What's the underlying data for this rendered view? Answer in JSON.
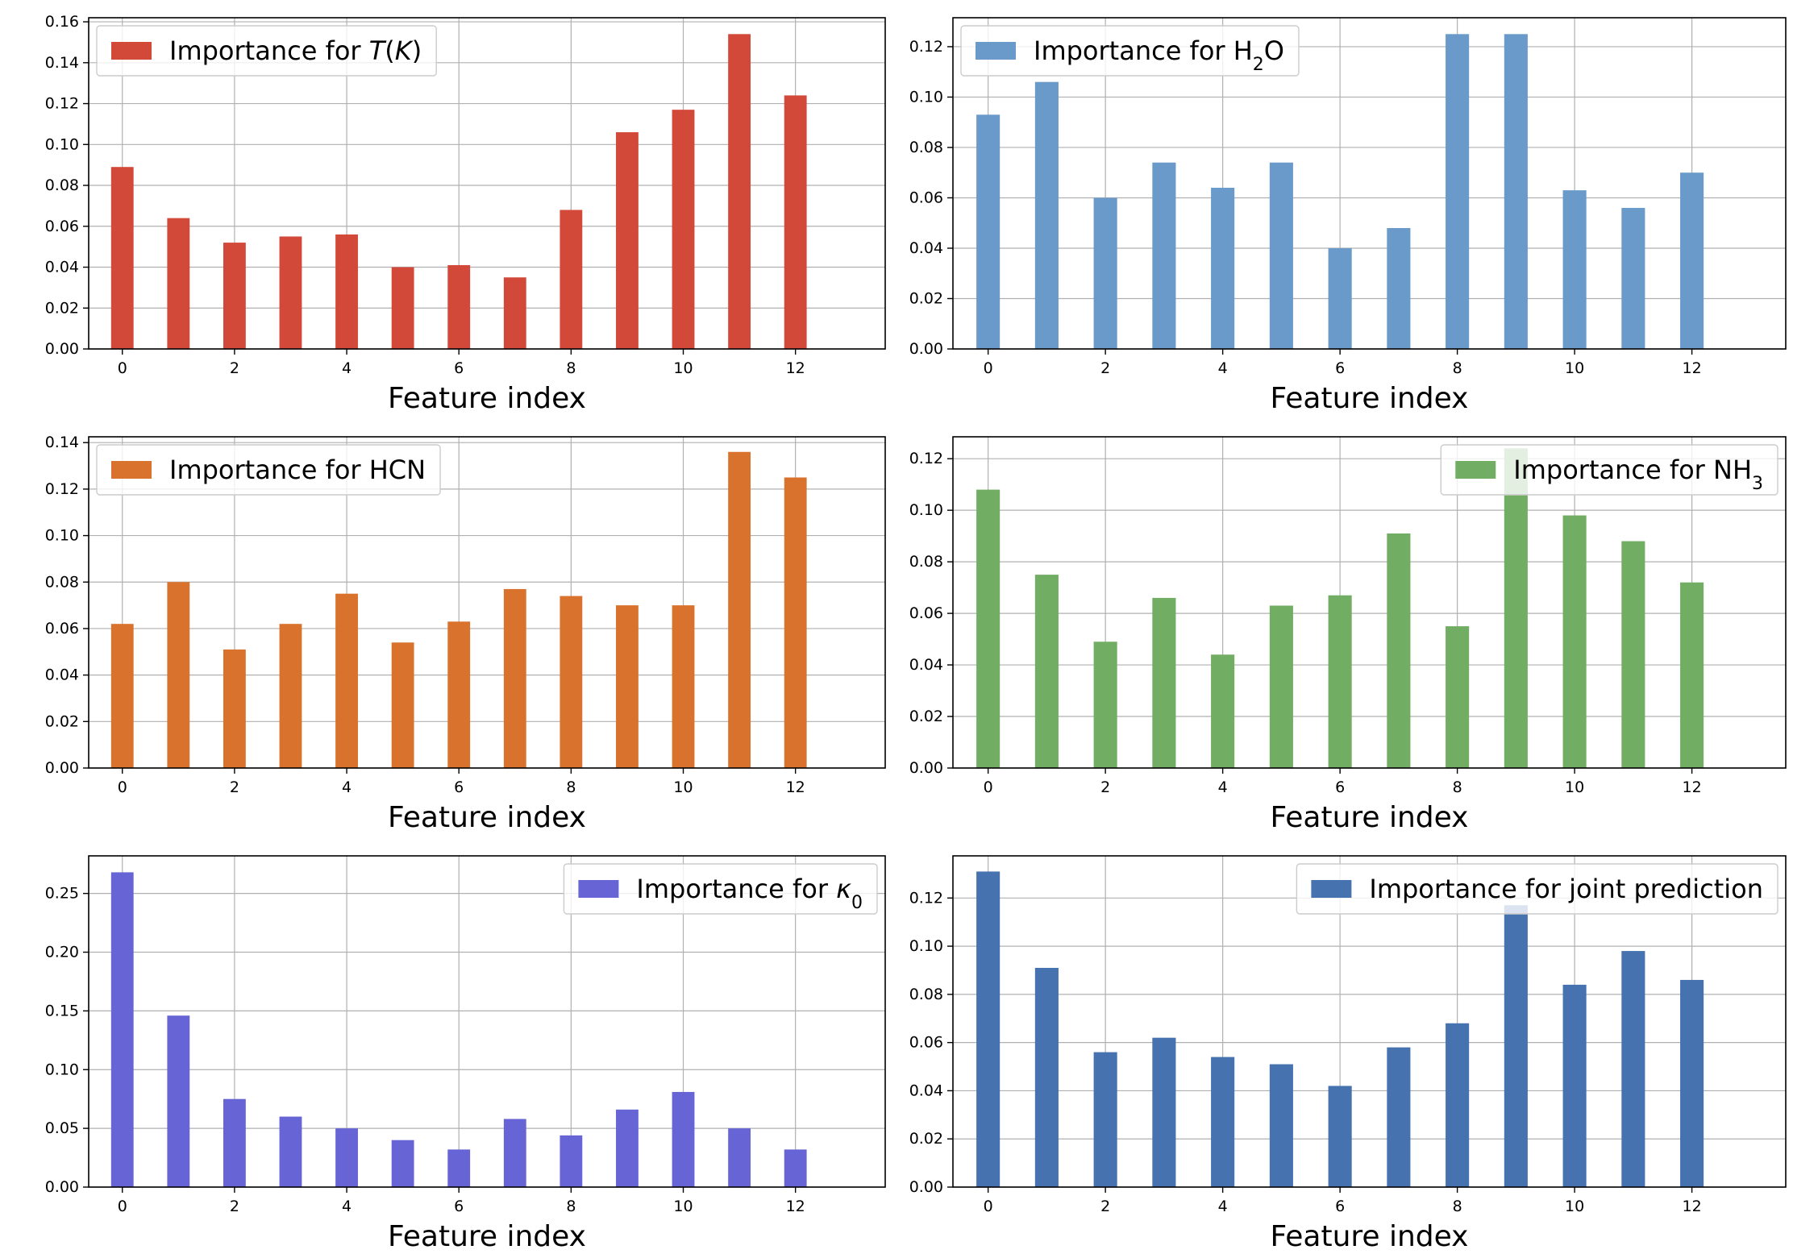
{
  "chart_data": [
    {
      "type": "bar",
      "x": [
        0,
        1,
        2,
        3,
        4,
        5,
        6,
        7,
        8,
        9,
        10,
        11,
        12
      ],
      "values": [
        0.089,
        0.064,
        0.052,
        0.055,
        0.056,
        0.04,
        0.041,
        0.035,
        0.068,
        0.106,
        0.117,
        0.154,
        0.124
      ],
      "legend_html": "Importance for <tspan font-style=\"italic\">T</tspan>(<tspan font-style=\"italic\">K</tspan>)",
      "legend_text": "Importance for T(K)",
      "legend_loc": "upper left",
      "color": "#d2493a",
      "xlabel": "Feature index",
      "ylim": [
        0,
        0.162
      ],
      "yticks": [
        0.0,
        0.02,
        0.04,
        0.06,
        0.08,
        0.1,
        0.12,
        0.14,
        0.16
      ],
      "xticks": [
        0,
        2,
        4,
        6,
        8,
        10,
        12
      ],
      "ytick_decimals": 2,
      "grid": true
    },
    {
      "type": "bar",
      "x": [
        0,
        1,
        2,
        3,
        4,
        5,
        6,
        7,
        8,
        9,
        10,
        11,
        12
      ],
      "values": [
        0.093,
        0.106,
        0.06,
        0.074,
        0.064,
        0.074,
        0.04,
        0.048,
        0.125,
        0.125,
        0.063,
        0.056,
        0.07
      ],
      "legend_html": "Importance for H<tspan baseline-shift=\"sub\" font-size=\"22\">2</tspan>O",
      "legend_text": "Importance for H2O",
      "legend_loc": "upper left",
      "color": "#6a9ac9",
      "xlabel": "Feature index",
      "ylim": [
        0,
        0.1315
      ],
      "yticks": [
        0.0,
        0.02,
        0.04,
        0.06,
        0.08,
        0.1,
        0.12
      ],
      "xticks": [
        0,
        2,
        4,
        6,
        8,
        10,
        12
      ],
      "ytick_decimals": 2,
      "grid": true
    },
    {
      "type": "bar",
      "x": [
        0,
        1,
        2,
        3,
        4,
        5,
        6,
        7,
        8,
        9,
        10,
        11,
        12
      ],
      "values": [
        0.062,
        0.08,
        0.051,
        0.062,
        0.075,
        0.054,
        0.063,
        0.077,
        0.074,
        0.07,
        0.07,
        0.136,
        0.125
      ],
      "legend_html": "Importance for HCN",
      "legend_text": "Importance for HCN",
      "legend_loc": "upper left",
      "color": "#d9722c",
      "xlabel": "Feature index",
      "ylim": [
        0,
        0.1425
      ],
      "yticks": [
        0.0,
        0.02,
        0.04,
        0.06,
        0.08,
        0.1,
        0.12,
        0.14
      ],
      "xticks": [
        0,
        2,
        4,
        6,
        8,
        10,
        12
      ],
      "ytick_decimals": 2,
      "grid": true
    },
    {
      "type": "bar",
      "x": [
        0,
        1,
        2,
        3,
        4,
        5,
        6,
        7,
        8,
        9,
        10,
        11,
        12
      ],
      "values": [
        0.108,
        0.075,
        0.049,
        0.066,
        0.044,
        0.063,
        0.067,
        0.091,
        0.055,
        0.124,
        0.098,
        0.088,
        0.072
      ],
      "legend_html": "Importance for NH<tspan baseline-shift=\"sub\" font-size=\"22\">3</tspan>",
      "legend_text": "Importance for NH3",
      "legend_loc": "upper right",
      "color": "#72ad64",
      "xlabel": "Feature index",
      "ylim": [
        0,
        0.1285
      ],
      "yticks": [
        0.0,
        0.02,
        0.04,
        0.06,
        0.08,
        0.1,
        0.12
      ],
      "xticks": [
        0,
        2,
        4,
        6,
        8,
        10,
        12
      ],
      "ytick_decimals": 2,
      "grid": true
    },
    {
      "type": "bar",
      "x": [
        0,
        1,
        2,
        3,
        4,
        5,
        6,
        7,
        8,
        9,
        10,
        11,
        12
      ],
      "values": [
        0.268,
        0.146,
        0.075,
        0.06,
        0.05,
        0.04,
        0.032,
        0.058,
        0.044,
        0.066,
        0.081,
        0.05,
        0.032
      ],
      "legend_html": "Importance for <tspan font-style=\"italic\">κ</tspan><tspan baseline-shift=\"sub\" font-size=\"22\">0</tspan>",
      "legend_text": "Importance for κ0",
      "legend_loc": "upper right",
      "color": "#6765d6",
      "xlabel": "Feature index",
      "ylim": [
        0,
        0.282
      ],
      "yticks": [
        0.0,
        0.05,
        0.1,
        0.15,
        0.2,
        0.25
      ],
      "xticks": [
        0,
        2,
        4,
        6,
        8,
        10,
        12
      ],
      "ytick_decimals": 2,
      "grid": true
    },
    {
      "type": "bar",
      "x": [
        0,
        1,
        2,
        3,
        4,
        5,
        6,
        7,
        8,
        9,
        10,
        11,
        12
      ],
      "values": [
        0.131,
        0.091,
        0.056,
        0.062,
        0.054,
        0.051,
        0.042,
        0.058,
        0.068,
        0.117,
        0.084,
        0.098,
        0.086
      ],
      "legend_html": "Importance for joint prediction",
      "legend_text": "Importance for joint prediction",
      "legend_loc": "upper right",
      "color": "#4673af",
      "xlabel": "Feature index",
      "ylim": [
        0,
        0.1375
      ],
      "yticks": [
        0.0,
        0.02,
        0.04,
        0.06,
        0.08,
        0.1,
        0.12
      ],
      "xticks": [
        0,
        2,
        4,
        6,
        8,
        10,
        12
      ],
      "ytick_decimals": 2,
      "grid": true
    }
  ]
}
